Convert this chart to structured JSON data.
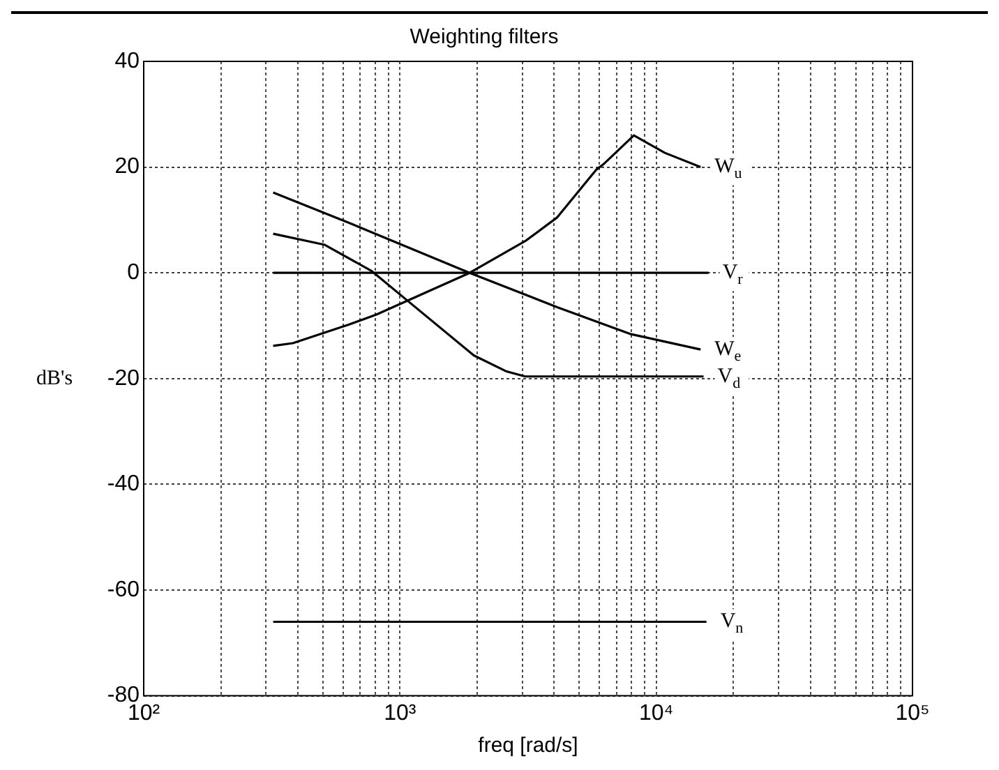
{
  "chart_data": {
    "type": "line",
    "title": "Weighting filters",
    "xlabel": "freq [rad/s]",
    "ylabel": "dB's",
    "log": "x",
    "grid": true,
    "marker": "none",
    "xlim": [
      100,
      100000
    ],
    "ylim": [
      -80,
      40
    ],
    "xticks": [
      {
        "value": 100,
        "label": "10²"
      },
      {
        "value": 200,
        "label": null
      },
      {
        "value": 300,
        "label": null
      },
      {
        "value": 400,
        "label": null
      },
      {
        "value": 500,
        "label": null
      },
      {
        "value": 600,
        "label": null
      },
      {
        "value": 700,
        "label": null
      },
      {
        "value": 800,
        "label": null
      },
      {
        "value": 900,
        "label": null
      },
      {
        "value": 1000,
        "label": "10³"
      },
      {
        "value": 2000,
        "label": null
      },
      {
        "value": 3000,
        "label": null
      },
      {
        "value": 4000,
        "label": null
      },
      {
        "value": 5000,
        "label": null
      },
      {
        "value": 6000,
        "label": null
      },
      {
        "value": 7000,
        "label": null
      },
      {
        "value": 8000,
        "label": null
      },
      {
        "value": 9000,
        "label": null
      },
      {
        "value": 10000,
        "label": "10⁴"
      },
      {
        "value": 20000,
        "label": null
      },
      {
        "value": 30000,
        "label": null
      },
      {
        "value": 40000,
        "label": null
      },
      {
        "value": 50000,
        "label": null
      },
      {
        "value": 60000,
        "label": null
      },
      {
        "value": 70000,
        "label": null
      },
      {
        "value": 80000,
        "label": null
      },
      {
        "value": 90000,
        "label": null
      },
      {
        "value": 100000,
        "label": "10⁵"
      }
    ],
    "yticks": [
      -80,
      -60,
      -40,
      -20,
      0,
      20,
      40
    ],
    "series": [
      {
        "name": "W$_{u}$",
        "color": "#000000",
        "x": [
          320,
          382,
          630,
          809,
          1870,
          3080,
          4110,
          5830,
          6210,
          8180,
          10800,
          14900
        ],
        "values": [
          -13.8,
          -13.3,
          -9.8,
          -7.9,
          0,
          6,
          10.5,
          19.5,
          20.5,
          26,
          22.7,
          20
        ]
      },
      {
        "name": "V$_{r}$",
        "color": "#000000",
        "x": [
          320,
          16000
        ],
        "values": [
          0,
          0
        ]
      },
      {
        "name": "W$_{e}$",
        "color": "#000000",
        "x": [
          320,
          630,
          1870,
          4110,
          7980,
          14900
        ],
        "values": [
          15.2,
          9.5,
          0,
          -6.5,
          -11.6,
          -14.5
        ]
      },
      {
        "name": "V$_{d}$",
        "color": "#000000",
        "x": [
          320,
          509,
          778,
          1060,
          1940,
          2590,
          3080,
          15300
        ],
        "values": [
          7.4,
          5.3,
          0.3,
          -5.1,
          -15.6,
          -18.6,
          -19.6,
          -19.6
        ]
      },
      {
        "name": "V$_{n}$",
        "color": "#000000",
        "x": [
          320,
          15700
        ],
        "values": [
          -66,
          -66
        ]
      }
    ]
  }
}
